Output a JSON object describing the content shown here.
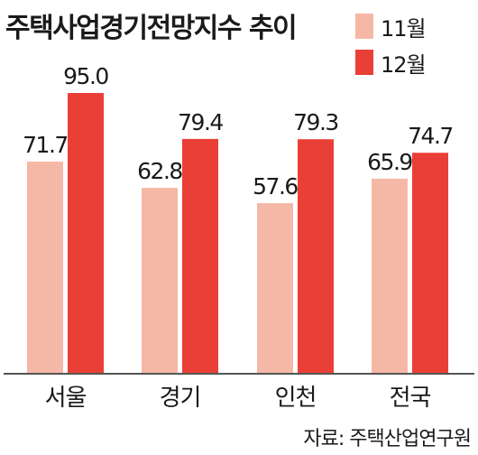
{
  "chart_data": {
    "type": "bar",
    "title": "주택사업경기전망지수 추이",
    "categories": [
      "서울",
      "경기",
      "인천",
      "전국"
    ],
    "series": [
      {
        "name": "11월",
        "values": [
          71.7,
          62.8,
          57.6,
          65.9
        ],
        "color": "#f6b8a6"
      },
      {
        "name": "12월",
        "values": [
          95.0,
          79.4,
          79.3,
          74.7
        ],
        "color": "#ea3f36"
      }
    ],
    "value_labels": [
      [
        "71.7",
        "62.8",
        "57.6",
        "65.9"
      ],
      [
        "95.0",
        "79.4",
        "79.3",
        "74.7"
      ]
    ],
    "ylim": [
      0,
      100
    ],
    "grid": false,
    "legend_position": "top-right",
    "source": "자료: 주택산업연구원"
  }
}
